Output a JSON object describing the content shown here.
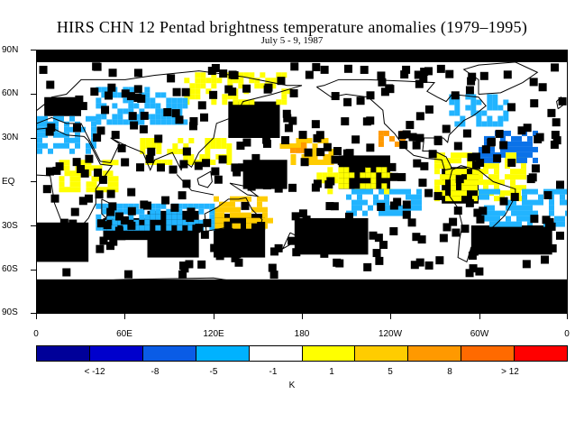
{
  "title": "HIRS CHN 12 Pentad brightness temperature anomalies (1979–1995)",
  "subtitle": "July 5 - 9, 1987",
  "lat_labels": [
    "90N",
    "60N",
    "30N",
    "EQ",
    "30S",
    "60S",
    "90S"
  ],
  "lon_labels": [
    "0",
    "60E",
    "120E",
    "180",
    "120W",
    "60W",
    "0"
  ],
  "colorbar": {
    "colors": [
      "#000099",
      "#0000cc",
      "#0a5ce6",
      "#00b2ff",
      "#ffffff",
      "#ffff00",
      "#ffcc00",
      "#ff9900",
      "#ff6a00",
      "#ff0000"
    ],
    "labels": [
      "< -12",
      "-8",
      "-5",
      "-1",
      "1",
      "5",
      "8",
      "> 12"
    ],
    "unit": "K"
  },
  "colors": {
    "missing": "#000000",
    "neg_weak": "#22b4ff",
    "neg_mod": "#0b72e8",
    "pos_weak": "#ffff00",
    "pos_mod": "#ffcc00",
    "pos_strong": "#ff9900",
    "coast": "#000000"
  },
  "chart_data": {
    "type": "map",
    "projection": "equirectangular",
    "lon_range": [
      0,
      360
    ],
    "lat_range": [
      -90,
      90
    ],
    "variable": "HIRS channel 12 brightness temperature anomaly",
    "units": "K",
    "period": "July 5 - 9, 1987",
    "color_levels": [
      -12,
      -8,
      -5,
      -1,
      1,
      5,
      8,
      12
    ],
    "regions": [
      {
        "kind": "missing",
        "lon": [
          0,
          360
        ],
        "lat": [
          -90,
          -67
        ]
      },
      {
        "kind": "missing",
        "lon": [
          0,
          360
        ],
        "lat": [
          82,
          90
        ]
      },
      {
        "kind": "missing",
        "lon": [
          45,
          75
        ],
        "lat": [
          -40,
          -25
        ]
      },
      {
        "kind": "missing",
        "lon": [
          75,
          110
        ],
        "lat": [
          -52,
          -20
        ]
      },
      {
        "kind": "missing",
        "lon": [
          120,
          155
        ],
        "lat": [
          -52,
          -22
        ]
      },
      {
        "kind": "missing",
        "lon": [
          175,
          225
        ],
        "lat": [
          -50,
          -25
        ]
      },
      {
        "kind": "missing",
        "lon": [
          205,
          240
        ],
        "lat": [
          -5,
          18
        ]
      },
      {
        "kind": "missing",
        "lon": [
          130,
          165
        ],
        "lat": [
          30,
          55
        ]
      },
      {
        "kind": "missing",
        "lon": [
          140,
          170
        ],
        "lat": [
          -5,
          15
        ]
      },
      {
        "kind": "missing",
        "lon": [
          5,
          30
        ],
        "lat": [
          45,
          58
        ]
      },
      {
        "kind": "missing",
        "lon": [
          295,
          350
        ],
        "lat": [
          -50,
          -30
        ]
      },
      {
        "kind": "missing",
        "lon": [
          0,
          35
        ],
        "lat": [
          -55,
          -28
        ]
      },
      {
        "kind": "missing",
        "lon": [
          275,
          300
        ],
        "lat": [
          -15,
          10
        ]
      },
      {
        "kind": "pos_mod",
        "lon": [
          165,
          200
        ],
        "lat": [
          15,
          30
        ]
      },
      {
        "kind": "pos_strong",
        "lon": [
          172,
          182
        ],
        "lat": [
          20,
          27
        ]
      },
      {
        "kind": "pos_mod",
        "lon": [
          120,
          160
        ],
        "lat": [
          -30,
          -10
        ]
      },
      {
        "kind": "pos_strong",
        "lon": [
          232,
          250
        ],
        "lat": [
          25,
          35
        ]
      },
      {
        "kind": "pos_weak",
        "lon": [
          15,
          55
        ],
        "lat": [
          -5,
          15
        ]
      },
      {
        "kind": "pos_weak",
        "lon": [
          70,
          130
        ],
        "lat": [
          12,
          30
        ]
      },
      {
        "kind": "pos_weak",
        "lon": [
          190,
          240
        ],
        "lat": [
          -5,
          10
        ]
      },
      {
        "kind": "pos_weak",
        "lon": [
          270,
          330
        ],
        "lat": [
          -10,
          20
        ]
      },
      {
        "kind": "pos_weak",
        "lon": [
          100,
          170
        ],
        "lat": [
          55,
          75
        ]
      },
      {
        "kind": "neg_weak",
        "lon": [
          0,
          40
        ],
        "lat": [
          20,
          45
        ]
      },
      {
        "kind": "neg_weak",
        "lon": [
          40,
          120
        ],
        "lat": [
          -30,
          -15
        ]
      },
      {
        "kind": "neg_weak",
        "lon": [
          300,
          360
        ],
        "lat": [
          -30,
          -5
        ]
      },
      {
        "kind": "neg_weak",
        "lon": [
          210,
          260
        ],
        "lat": [
          -20,
          -5
        ]
      },
      {
        "kind": "neg_weak",
        "lon": [
          40,
          100
        ],
        "lat": [
          40,
          65
        ]
      },
      {
        "kind": "neg_mod",
        "lon": [
          300,
          340
        ],
        "lat": [
          15,
          35
        ]
      },
      {
        "kind": "neg_weak",
        "lon": [
          280,
          320
        ],
        "lat": [
          40,
          60
        ]
      }
    ]
  }
}
